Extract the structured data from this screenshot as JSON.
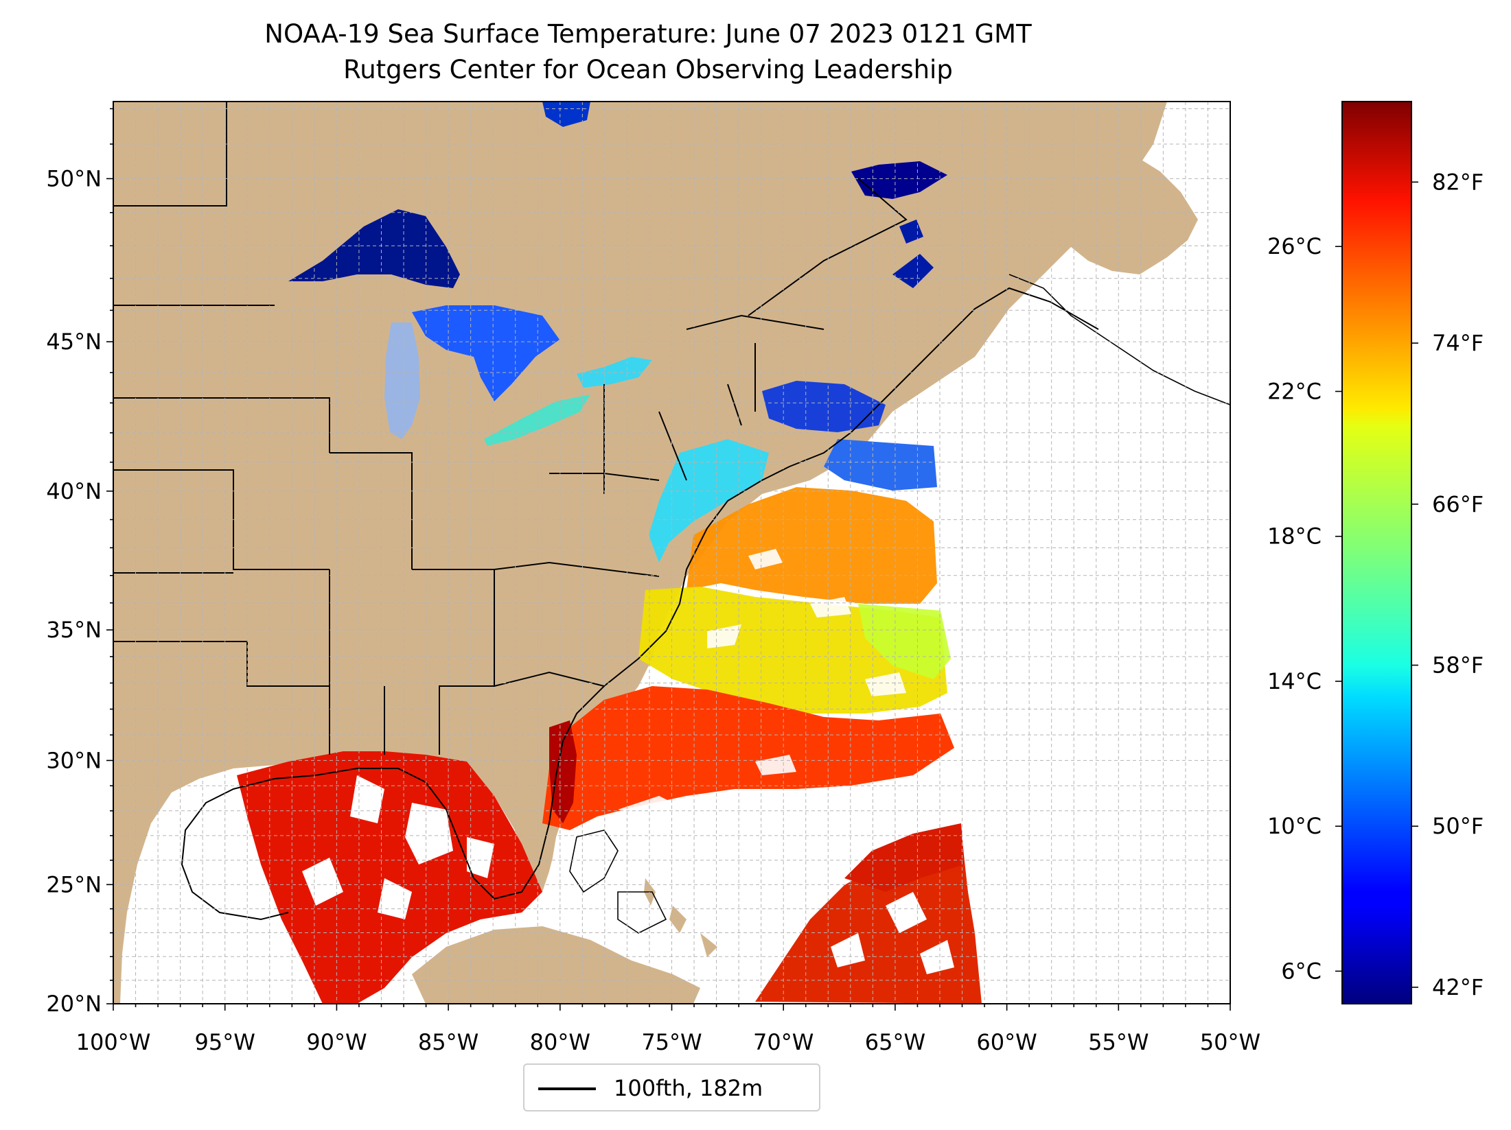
{
  "title": "NOAA-19 Sea Surface Temperature: June 07 2023 0121 GMT",
  "subtitle": "Rutgers Center for Ocean Observing Leadership",
  "map": {
    "lon_range": [
      -100,
      -50
    ],
    "lat_range": [
      20,
      52.2
    ],
    "x_ticks": [
      {
        "lon": -100,
        "label": "100°W"
      },
      {
        "lon": -95,
        "label": "95°W"
      },
      {
        "lon": -90,
        "label": "90°W"
      },
      {
        "lon": -85,
        "label": "85°W"
      },
      {
        "lon": -80,
        "label": "80°W"
      },
      {
        "lon": -75,
        "label": "75°W"
      },
      {
        "lon": -70,
        "label": "70°W"
      },
      {
        "lon": -65,
        "label": "65°W"
      },
      {
        "lon": -60,
        "label": "60°W"
      },
      {
        "lon": -55,
        "label": "55°W"
      },
      {
        "lon": -50,
        "label": "50°W"
      }
    ],
    "y_ticks": [
      {
        "lat": 20,
        "label": "20°N"
      },
      {
        "lat": 25,
        "label": "25°N"
      },
      {
        "lat": 30,
        "label": "30°N"
      },
      {
        "lat": 35,
        "label": "35°N"
      },
      {
        "lat": 40,
        "label": "40°N"
      },
      {
        "lat": 45,
        "label": "45°N"
      },
      {
        "lat": 50,
        "label": "50°N"
      }
    ],
    "grid": "dashed every 1°",
    "land_color": "#d2b48c",
    "lake_color": "#9ab5e3",
    "contour_color": "#000000"
  },
  "colorbar": {
    "colormap": "jet",
    "celsius_range": [
      5.1,
      30.0
    ],
    "celsius_ticks": [
      {
        "value": 6,
        "label": "6°C"
      },
      {
        "value": 10,
        "label": "10°C"
      },
      {
        "value": 14,
        "label": "14°C"
      },
      {
        "value": 18,
        "label": "18°C"
      },
      {
        "value": 22,
        "label": "22°C"
      },
      {
        "value": 26,
        "label": "26°C"
      }
    ],
    "fahrenheit_ticks": [
      {
        "value": 42,
        "label": "42°F"
      },
      {
        "value": 50,
        "label": "50°F"
      },
      {
        "value": 58,
        "label": "58°F"
      },
      {
        "value": 66,
        "label": "66°F"
      },
      {
        "value": 74,
        "label": "74°F"
      },
      {
        "value": 82,
        "label": "82°F"
      }
    ]
  },
  "legend": {
    "label": "100fth, 182m"
  }
}
